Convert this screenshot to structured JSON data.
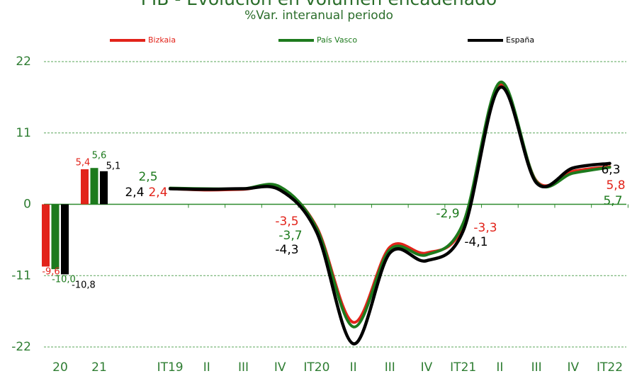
{
  "chart_data": {
    "type": "bar-line",
    "title": "PIB - Evolución en volumen encadenado",
    "subtitle": "%Var. interanual periodo",
    "annual_categories": [
      "20",
      "21"
    ],
    "categories": [
      "IT19",
      "II",
      "III",
      "IV",
      "IT20",
      "II",
      "III",
      "IV",
      "IT21",
      "II",
      "III",
      "IV",
      "IT22"
    ],
    "ylim": [
      -22,
      22
    ],
    "yticks": [
      -22,
      -11,
      0,
      11,
      22
    ],
    "grid": true,
    "legend": "top",
    "series": [
      {
        "name": "Bizkaia",
        "color": "#e2231a",
        "annual_values": [
          -9.6,
          5.4
        ],
        "annual_value_labels": [
          "-9,6",
          "5,4"
        ],
        "values": [
          2.4,
          2.2,
          2.3,
          2.5,
          -3.5,
          -18.2,
          -6.6,
          -7.5,
          -3.3,
          18.4,
          3.6,
          5.1,
          5.8
        ],
        "value_labels": [
          "2,4",
          null,
          null,
          null,
          "-3,5",
          null,
          null,
          null,
          "-3,3",
          null,
          null,
          null,
          "5,8"
        ]
      },
      {
        "name": "País Vasco",
        "color": "#1d7a1d",
        "annual_values": [
          -10.0,
          5.6
        ],
        "annual_value_labels": [
          "-10,0",
          "5,6"
        ],
        "values": [
          2.5,
          2.4,
          2.4,
          2.7,
          -3.7,
          -18.9,
          -7.0,
          -7.8,
          -2.9,
          18.8,
          3.5,
          4.8,
          5.7
        ],
        "value_labels": [
          "2,5",
          null,
          null,
          null,
          "-3,7",
          null,
          null,
          null,
          "-2,9",
          null,
          null,
          null,
          "5,7"
        ]
      },
      {
        "name": "España",
        "color": "#000000",
        "annual_values": [
          -10.8,
          5.1
        ],
        "annual_value_labels": [
          "-10,8",
          "5,1"
        ],
        "values": [
          2.4,
          2.3,
          2.4,
          2.2,
          -4.3,
          -21.5,
          -7.5,
          -8.7,
          -4.1,
          18.0,
          3.3,
          5.6,
          6.3
        ],
        "value_labels": [
          "2,4",
          null,
          null,
          null,
          "-4,3",
          null,
          null,
          null,
          "-4,1",
          null,
          null,
          null,
          "6,3"
        ]
      }
    ]
  }
}
